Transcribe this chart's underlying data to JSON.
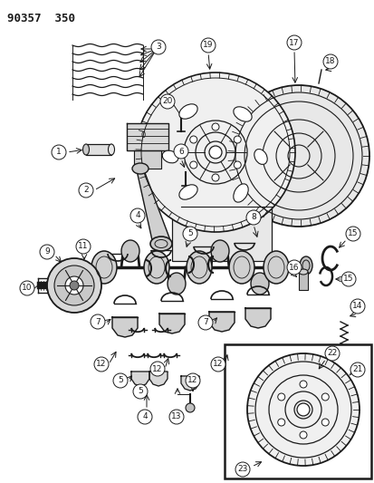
{
  "title": "90357  350",
  "bg_color": "#ffffff",
  "line_color": "#1a1a1a",
  "fig_width": 4.14,
  "fig_height": 5.33,
  "dpi": 100,
  "label_circle_r": 8,
  "label_fontsize": 6.5
}
